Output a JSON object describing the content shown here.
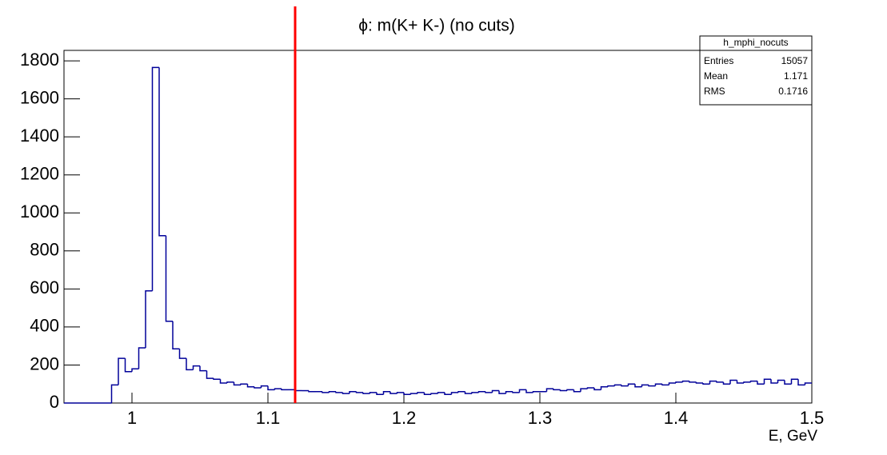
{
  "chart_data": {
    "type": "histogram",
    "title": "ϕ: m(K+ K-) (no cuts)",
    "x_label": "E, GeV",
    "bins": [
      0.95,
      0.955,
      0.96,
      0.965,
      0.97,
      0.975,
      0.98,
      0.985,
      0.99,
      0.995,
      1.0,
      1.005,
      1.01,
      1.015,
      1.02,
      1.025,
      1.03,
      1.035,
      1.04,
      1.045,
      1.05,
      1.055,
      1.06,
      1.065,
      1.07,
      1.075,
      1.08,
      1.085,
      1.09,
      1.095,
      1.1,
      1.105,
      1.11,
      1.115,
      1.12,
      1.125,
      1.13,
      1.135,
      1.14,
      1.145,
      1.15,
      1.155,
      1.16,
      1.165,
      1.17,
      1.175,
      1.18,
      1.185,
      1.19,
      1.195,
      1.2,
      1.205,
      1.21,
      1.215,
      1.22,
      1.225,
      1.23,
      1.235,
      1.24,
      1.245,
      1.25,
      1.255,
      1.26,
      1.265,
      1.27,
      1.275,
      1.28,
      1.285,
      1.29,
      1.295,
      1.3,
      1.305,
      1.31,
      1.315,
      1.32,
      1.325,
      1.33,
      1.335,
      1.34,
      1.345,
      1.35,
      1.355,
      1.36,
      1.365,
      1.37,
      1.375,
      1.38,
      1.385,
      1.39,
      1.395,
      1.4,
      1.405,
      1.41,
      1.415,
      1.42,
      1.425,
      1.43,
      1.435,
      1.44,
      1.445,
      1.45,
      1.455,
      1.46,
      1.465,
      1.47,
      1.475,
      1.48,
      1.485,
      1.49,
      1.495,
      1.5
    ],
    "values": [
      0,
      0,
      0,
      0,
      0,
      0,
      0,
      95,
      235,
      165,
      180,
      290,
      590,
      1765,
      880,
      430,
      285,
      235,
      175,
      195,
      170,
      130,
      125,
      105,
      110,
      95,
      100,
      85,
      80,
      90,
      70,
      75,
      70,
      70,
      65,
      65,
      60,
      60,
      55,
      60,
      55,
      50,
      60,
      55,
      50,
      55,
      45,
      60,
      50,
      55,
      45,
      50,
      55,
      45,
      50,
      55,
      45,
      55,
      60,
      50,
      55,
      60,
      55,
      65,
      50,
      60,
      55,
      70,
      55,
      60,
      60,
      75,
      70,
      65,
      70,
      60,
      75,
      80,
      70,
      85,
      90,
      95,
      90,
      100,
      85,
      95,
      90,
      100,
      95,
      105,
      110,
      115,
      110,
      105,
      100,
      115,
      110,
      100,
      120,
      105,
      110,
      115,
      100,
      125,
      105,
      120,
      100,
      125,
      95,
      105
    ],
    "color": "#000099",
    "xlim": [
      0.95,
      1.5
    ],
    "ylim": [
      0,
      1855
    ],
    "xticks": [
      1,
      1.1,
      1.2,
      1.3,
      1.4,
      1.5
    ],
    "yticks": [
      0,
      200,
      400,
      600,
      800,
      1000,
      1200,
      1400,
      1600,
      1800
    ],
    "cut_line": {
      "x": 1.12,
      "color": "#ff0000"
    },
    "stats": {
      "name": "h_mphi_nocuts",
      "rows": [
        {
          "label": "Entries",
          "value": 15057
        },
        {
          "label": "Mean",
          "value": 1.171
        },
        {
          "label": "RMS",
          "value": 0.1716
        }
      ]
    }
  }
}
